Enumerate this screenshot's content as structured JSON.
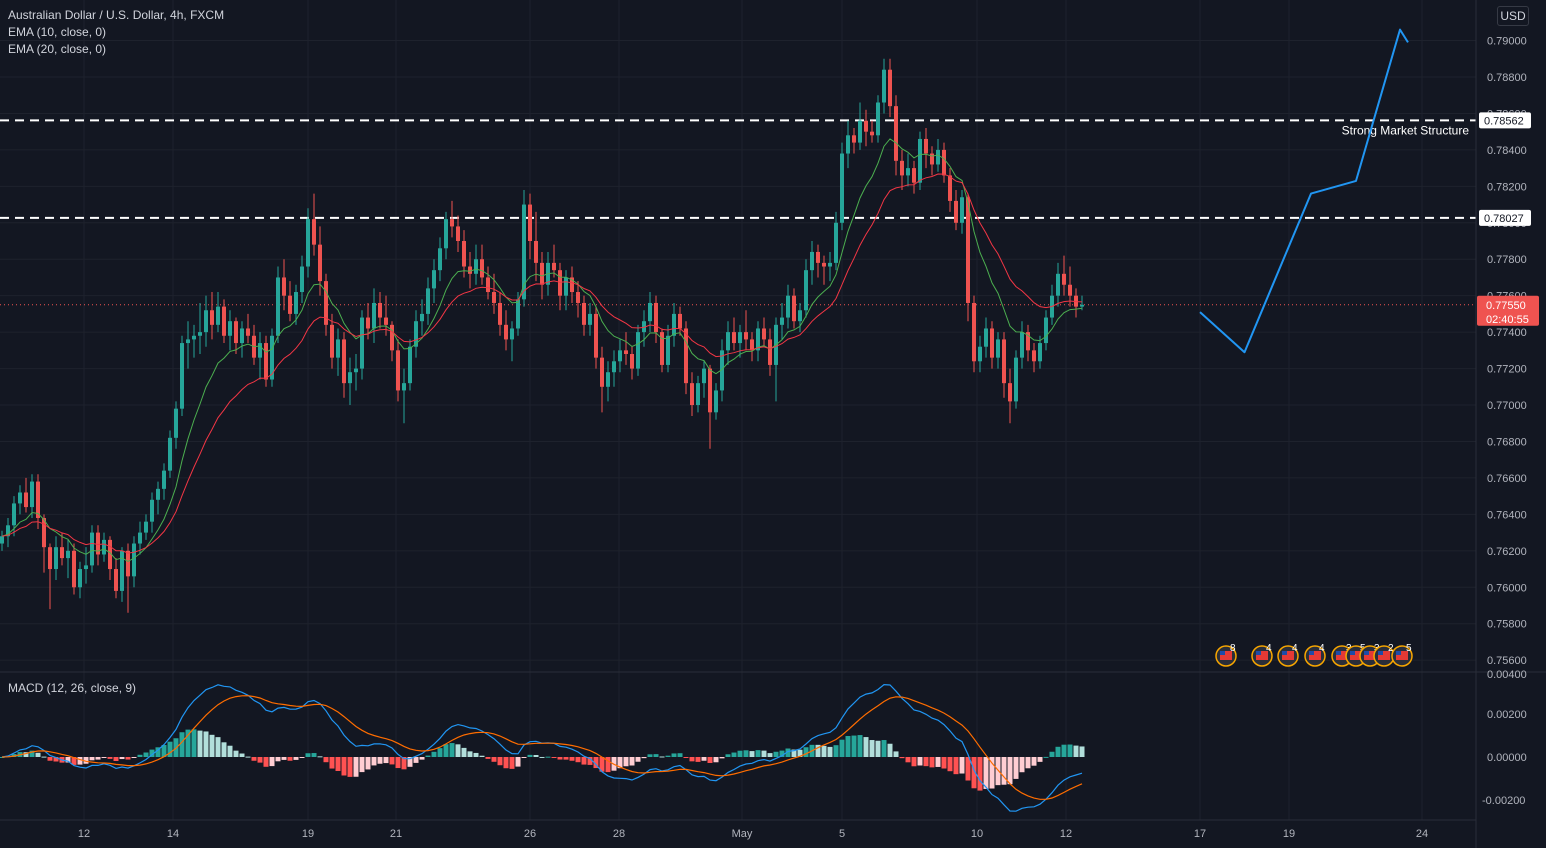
{
  "header": {
    "symbol_title": "Australian Dollar / U.S. Dollar, 4h, FXCM",
    "ema_fast_label": "EMA (10, close, 0)",
    "ema_slow_label": "EMA (20, close, 0)",
    "currency_button": "USD"
  },
  "macd_panel": {
    "label": "MACD (12, 26, close, 9)"
  },
  "price_tag": {
    "price": "0.77550",
    "countdown": "02:40:55"
  },
  "annotations": {
    "strong_structure_label": "Strong Market Structure"
  },
  "events": {
    "badges": [
      "8",
      "4",
      "4",
      "4",
      "3",
      "5",
      "3",
      "2",
      "5"
    ]
  },
  "colors": {
    "background": "#131722",
    "up": "#26a69a",
    "down": "#ef5350",
    "ema_fast": "#4caf50",
    "ema_slow": "#f23645",
    "macd_line": "#2196f3",
    "signal_line": "#ff6d00",
    "projection": "#2196f3",
    "levels": "#ffffff"
  },
  "chart_data": {
    "type": "candlestick",
    "title": "Australian Dollar / U.S. Dollar, 4h, FXCM",
    "timeframe": "4h",
    "price_axis": {
      "ticks": [
        "0.79000",
        "0.78800",
        "0.78600",
        "0.78400",
        "0.78200",
        "0.78000",
        "0.77800",
        "0.77600",
        "0.77400",
        "0.77200",
        "0.77000",
        "0.76800",
        "0.76600",
        "0.76400",
        "0.76200",
        "0.76000",
        "0.75800",
        "0.75600"
      ],
      "range": [
        0.7556,
        0.7922
      ]
    },
    "time_axis": {
      "labels": [
        "12",
        "14",
        "19",
        "21",
        "26",
        "28",
        "May",
        "5",
        "10",
        "12",
        "17",
        "19",
        "24"
      ]
    },
    "macd_axis": {
      "ticks": [
        "0.00400",
        "0.00200",
        "0.00000",
        "-0.00200"
      ]
    },
    "levels": [
      {
        "price": 0.78562,
        "label": "0.78562",
        "style": "dashed",
        "note": "Strong Market Structure"
      },
      {
        "price": 0.78027,
        "label": "0.78027",
        "style": "dashed"
      }
    ],
    "current_price": 0.7755,
    "projection_path": [
      {
        "x": "17",
        "y": 0.7751
      },
      {
        "x": "18",
        "y": 0.7729
      },
      {
        "x": "19.5",
        "y": 0.7816
      },
      {
        "x": "21",
        "y": 0.7823
      },
      {
        "x": "23",
        "y": 0.7906
      },
      {
        "x": "23.2",
        "y": 0.7899
      }
    ],
    "ohlc": [
      [
        0.7624,
        0.7631,
        0.762,
        0.7628
      ],
      [
        0.7628,
        0.7638,
        0.7622,
        0.7634
      ],
      [
        0.7634,
        0.765,
        0.7628,
        0.7646
      ],
      [
        0.7646,
        0.7656,
        0.764,
        0.7652
      ],
      [
        0.7652,
        0.766,
        0.7641,
        0.7644
      ],
      [
        0.7644,
        0.7662,
        0.7638,
        0.7658
      ],
      [
        0.7658,
        0.7662,
        0.7632,
        0.7638
      ],
      [
        0.7638,
        0.764,
        0.7608,
        0.7622
      ],
      [
        0.7622,
        0.7624,
        0.7588,
        0.761
      ],
      [
        0.761,
        0.7628,
        0.7604,
        0.7622
      ],
      [
        0.7622,
        0.763,
        0.7612,
        0.7616
      ],
      [
        0.7616,
        0.7626,
        0.7605,
        0.762
      ],
      [
        0.762,
        0.7624,
        0.7596,
        0.76
      ],
      [
        0.76,
        0.7614,
        0.7594,
        0.761
      ],
      [
        0.761,
        0.7622,
        0.7602,
        0.7612
      ],
      [
        0.7612,
        0.7634,
        0.7608,
        0.763
      ],
      [
        0.763,
        0.7634,
        0.7612,
        0.7618
      ],
      [
        0.7618,
        0.763,
        0.7614,
        0.7626
      ],
      [
        0.7626,
        0.7628,
        0.7604,
        0.761
      ],
      [
        0.761,
        0.7616,
        0.7594,
        0.7598
      ],
      [
        0.7598,
        0.7622,
        0.7592,
        0.762
      ],
      [
        0.762,
        0.7624,
        0.7586,
        0.7606
      ],
      [
        0.7606,
        0.7628,
        0.76,
        0.7624
      ],
      [
        0.7624,
        0.7636,
        0.7618,
        0.763
      ],
      [
        0.763,
        0.764,
        0.7626,
        0.7636
      ],
      [
        0.7636,
        0.7652,
        0.763,
        0.7648
      ],
      [
        0.7648,
        0.7658,
        0.764,
        0.7654
      ],
      [
        0.7654,
        0.7668,
        0.7648,
        0.7664
      ],
      [
        0.7664,
        0.7686,
        0.766,
        0.7682
      ],
      [
        0.7682,
        0.7702,
        0.7676,
        0.7698
      ],
      [
        0.7698,
        0.7738,
        0.7694,
        0.7734
      ],
      [
        0.7734,
        0.7746,
        0.772,
        0.7736
      ],
      [
        0.7736,
        0.7744,
        0.7726,
        0.7738
      ],
      [
        0.7738,
        0.7756,
        0.7728,
        0.774
      ],
      [
        0.774,
        0.776,
        0.7732,
        0.7752
      ],
      [
        0.7752,
        0.7762,
        0.7736,
        0.7744
      ],
      [
        0.7744,
        0.7762,
        0.774,
        0.7754
      ],
      [
        0.7754,
        0.7758,
        0.7734,
        0.7738
      ],
      [
        0.7738,
        0.7752,
        0.773,
        0.7746
      ],
      [
        0.7746,
        0.7748,
        0.7728,
        0.7734
      ],
      [
        0.7734,
        0.7746,
        0.7726,
        0.7742
      ],
      [
        0.7742,
        0.775,
        0.7734,
        0.7738
      ],
      [
        0.7738,
        0.7744,
        0.7722,
        0.7726
      ],
      [
        0.7726,
        0.774,
        0.7714,
        0.7734
      ],
      [
        0.7734,
        0.7738,
        0.771,
        0.7714
      ],
      [
        0.7714,
        0.7742,
        0.771,
        0.7738
      ],
      [
        0.7738,
        0.7776,
        0.7734,
        0.777
      ],
      [
        0.777,
        0.778,
        0.7752,
        0.776
      ],
      [
        0.776,
        0.7768,
        0.7746,
        0.775
      ],
      [
        0.775,
        0.7766,
        0.7744,
        0.7762
      ],
      [
        0.7762,
        0.7782,
        0.7756,
        0.7776
      ],
      [
        0.7776,
        0.7808,
        0.777,
        0.7802
      ],
      [
        0.7802,
        0.7816,
        0.7782,
        0.7788
      ],
      [
        0.7788,
        0.7798,
        0.776,
        0.7768
      ],
      [
        0.7768,
        0.7772,
        0.7738,
        0.7744
      ],
      [
        0.7744,
        0.775,
        0.772,
        0.7726
      ],
      [
        0.7726,
        0.7742,
        0.7716,
        0.7736
      ],
      [
        0.7736,
        0.774,
        0.7704,
        0.7712
      ],
      [
        0.7712,
        0.7726,
        0.77,
        0.7718
      ],
      [
        0.7718,
        0.7728,
        0.7708,
        0.772
      ],
      [
        0.772,
        0.7752,
        0.7714,
        0.7748
      ],
      [
        0.7748,
        0.7756,
        0.7736,
        0.7742
      ],
      [
        0.7742,
        0.7764,
        0.7734,
        0.7756
      ],
      [
        0.7756,
        0.7762,
        0.7742,
        0.7748
      ],
      [
        0.7748,
        0.776,
        0.7738,
        0.7744
      ],
      [
        0.7744,
        0.7746,
        0.7724,
        0.773
      ],
      [
        0.773,
        0.7736,
        0.7702,
        0.7708
      ],
      [
        0.7708,
        0.772,
        0.769,
        0.7712
      ],
      [
        0.7712,
        0.7736,
        0.7708,
        0.7732
      ],
      [
        0.7732,
        0.7752,
        0.7726,
        0.7746
      ],
      [
        0.7746,
        0.7758,
        0.7738,
        0.775
      ],
      [
        0.775,
        0.777,
        0.7744,
        0.7764
      ],
      [
        0.7764,
        0.778,
        0.7756,
        0.7774
      ],
      [
        0.7774,
        0.7792,
        0.7768,
        0.7786
      ],
      [
        0.7786,
        0.7806,
        0.778,
        0.7802
      ],
      [
        0.7802,
        0.7812,
        0.7792,
        0.7798
      ],
      [
        0.7798,
        0.7804,
        0.7784,
        0.779
      ],
      [
        0.779,
        0.7796,
        0.777,
        0.7776
      ],
      [
        0.7776,
        0.7784,
        0.7764,
        0.7772
      ],
      [
        0.7772,
        0.7788,
        0.7766,
        0.778
      ],
      [
        0.778,
        0.7788,
        0.7766,
        0.777
      ],
      [
        0.777,
        0.7776,
        0.7758,
        0.7762
      ],
      [
        0.7762,
        0.7772,
        0.775,
        0.7756
      ],
      [
        0.7756,
        0.7762,
        0.7738,
        0.7744
      ],
      [
        0.7744,
        0.7752,
        0.773,
        0.7736
      ],
      [
        0.7736,
        0.7746,
        0.7724,
        0.7742
      ],
      [
        0.7742,
        0.7762,
        0.7738,
        0.7758
      ],
      [
        0.7758,
        0.7818,
        0.7754,
        0.781
      ],
      [
        0.781,
        0.7816,
        0.778,
        0.779
      ],
      [
        0.779,
        0.7806,
        0.7768,
        0.7778
      ],
      [
        0.7778,
        0.7784,
        0.7758,
        0.7766
      ],
      [
        0.7766,
        0.7784,
        0.776,
        0.7778
      ],
      [
        0.7778,
        0.7788,
        0.777,
        0.7774
      ],
      [
        0.7774,
        0.7778,
        0.7752,
        0.776
      ],
      [
        0.776,
        0.7774,
        0.7752,
        0.777
      ],
      [
        0.777,
        0.7776,
        0.7756,
        0.7762
      ],
      [
        0.7762,
        0.7768,
        0.7748,
        0.7756
      ],
      [
        0.7756,
        0.776,
        0.7738,
        0.7744
      ],
      [
        0.7744,
        0.7756,
        0.7738,
        0.775
      ],
      [
        0.775,
        0.7754,
        0.772,
        0.7726
      ],
      [
        0.7726,
        0.7732,
        0.7696,
        0.771
      ],
      [
        0.771,
        0.7724,
        0.7702,
        0.7718
      ],
      [
        0.7718,
        0.773,
        0.771,
        0.7724
      ],
      [
        0.7724,
        0.7736,
        0.7718,
        0.773
      ],
      [
        0.773,
        0.774,
        0.7722,
        0.7728
      ],
      [
        0.7728,
        0.7732,
        0.7714,
        0.772
      ],
      [
        0.772,
        0.7744,
        0.7716,
        0.774
      ],
      [
        0.774,
        0.7752,
        0.7732,
        0.7746
      ],
      [
        0.7746,
        0.7762,
        0.774,
        0.7756
      ],
      [
        0.7756,
        0.776,
        0.7734,
        0.774
      ],
      [
        0.774,
        0.7742,
        0.7718,
        0.7722
      ],
      [
        0.7722,
        0.7744,
        0.7718,
        0.7738
      ],
      [
        0.7738,
        0.7756,
        0.7732,
        0.775
      ],
      [
        0.775,
        0.7754,
        0.7738,
        0.7742
      ],
      [
        0.7742,
        0.7746,
        0.7706,
        0.7712
      ],
      [
        0.7712,
        0.7718,
        0.7694,
        0.77
      ],
      [
        0.77,
        0.7716,
        0.7696,
        0.7712
      ],
      [
        0.7712,
        0.7724,
        0.7704,
        0.772
      ],
      [
        0.772,
        0.7722,
        0.7676,
        0.7696
      ],
      [
        0.7696,
        0.7712,
        0.7692,
        0.7708
      ],
      [
        0.7708,
        0.7736,
        0.7702,
        0.773
      ],
      [
        0.773,
        0.7746,
        0.7722,
        0.774
      ],
      [
        0.774,
        0.7748,
        0.773,
        0.7734
      ],
      [
        0.7734,
        0.7744,
        0.7726,
        0.774
      ],
      [
        0.774,
        0.7752,
        0.773,
        0.7736
      ],
      [
        0.7736,
        0.774,
        0.7724,
        0.773
      ],
      [
        0.773,
        0.7746,
        0.7724,
        0.7742
      ],
      [
        0.7742,
        0.7748,
        0.7732,
        0.7736
      ],
      [
        0.7736,
        0.7742,
        0.7716,
        0.7722
      ],
      [
        0.7722,
        0.7748,
        0.7702,
        0.7744
      ],
      [
        0.7744,
        0.7756,
        0.7736,
        0.7748
      ],
      [
        0.7748,
        0.7766,
        0.7742,
        0.776
      ],
      [
        0.776,
        0.7764,
        0.7742,
        0.7746
      ],
      [
        0.7746,
        0.7756,
        0.774,
        0.7752
      ],
      [
        0.7752,
        0.778,
        0.7748,
        0.7774
      ],
      [
        0.7774,
        0.779,
        0.7766,
        0.7784
      ],
      [
        0.7784,
        0.7788,
        0.777,
        0.7778
      ],
      [
        0.7778,
        0.7782,
        0.7766,
        0.7776
      ],
      [
        0.7776,
        0.7784,
        0.7768,
        0.7778
      ],
      [
        0.7778,
        0.7806,
        0.7774,
        0.78
      ],
      [
        0.78,
        0.7844,
        0.7796,
        0.7838
      ],
      [
        0.7838,
        0.7856,
        0.783,
        0.7848
      ],
      [
        0.7848,
        0.7852,
        0.7838,
        0.7844
      ],
      [
        0.7844,
        0.7866,
        0.784,
        0.7856
      ],
      [
        0.7856,
        0.7862,
        0.7842,
        0.785
      ],
      [
        0.785,
        0.7856,
        0.7844,
        0.7848
      ],
      [
        0.7848,
        0.787,
        0.7844,
        0.7866
      ],
      [
        0.7866,
        0.789,
        0.786,
        0.7884
      ],
      [
        0.7884,
        0.789,
        0.7858,
        0.7864
      ],
      [
        0.7864,
        0.787,
        0.7826,
        0.7834
      ],
      [
        0.7834,
        0.784,
        0.7818,
        0.7826
      ],
      [
        0.7826,
        0.7838,
        0.782,
        0.783
      ],
      [
        0.783,
        0.7834,
        0.7816,
        0.7822
      ],
      [
        0.7822,
        0.785,
        0.7818,
        0.7846
      ],
      [
        0.7846,
        0.7852,
        0.783,
        0.7838
      ],
      [
        0.7838,
        0.7842,
        0.7826,
        0.7832
      ],
      [
        0.7832,
        0.7846,
        0.7828,
        0.784
      ],
      [
        0.784,
        0.7844,
        0.7822,
        0.7826
      ],
      [
        0.7826,
        0.783,
        0.7806,
        0.7812
      ],
      [
        0.7812,
        0.7818,
        0.7796,
        0.78
      ],
      [
        0.78,
        0.7818,
        0.7794,
        0.7814
      ],
      [
        0.7814,
        0.7816,
        0.7746,
        0.7756
      ],
      [
        0.7756,
        0.776,
        0.7718,
        0.7724
      ],
      [
        0.7724,
        0.7738,
        0.7718,
        0.7732
      ],
      [
        0.7732,
        0.7748,
        0.7726,
        0.7742
      ],
      [
        0.7742,
        0.7746,
        0.772,
        0.7726
      ],
      [
        0.7726,
        0.774,
        0.772,
        0.7736
      ],
      [
        0.7736,
        0.774,
        0.7704,
        0.7712
      ],
      [
        0.7712,
        0.772,
        0.769,
        0.7702
      ],
      [
        0.7702,
        0.773,
        0.7698,
        0.7726
      ],
      [
        0.7726,
        0.7746,
        0.772,
        0.774
      ],
      [
        0.774,
        0.7744,
        0.7724,
        0.773
      ],
      [
        0.773,
        0.7734,
        0.7718,
        0.7724
      ],
      [
        0.7724,
        0.7738,
        0.772,
        0.7734
      ],
      [
        0.7734,
        0.7752,
        0.773,
        0.7748
      ],
      [
        0.7748,
        0.7766,
        0.7744,
        0.776
      ],
      [
        0.776,
        0.7778,
        0.7754,
        0.7772
      ],
      [
        0.7772,
        0.7782,
        0.776,
        0.7766
      ],
      [
        0.7766,
        0.7776,
        0.7754,
        0.776
      ],
      [
        0.776,
        0.7764,
        0.7748,
        0.7754
      ],
      [
        0.7754,
        0.776,
        0.7752,
        0.7755
      ]
    ]
  }
}
